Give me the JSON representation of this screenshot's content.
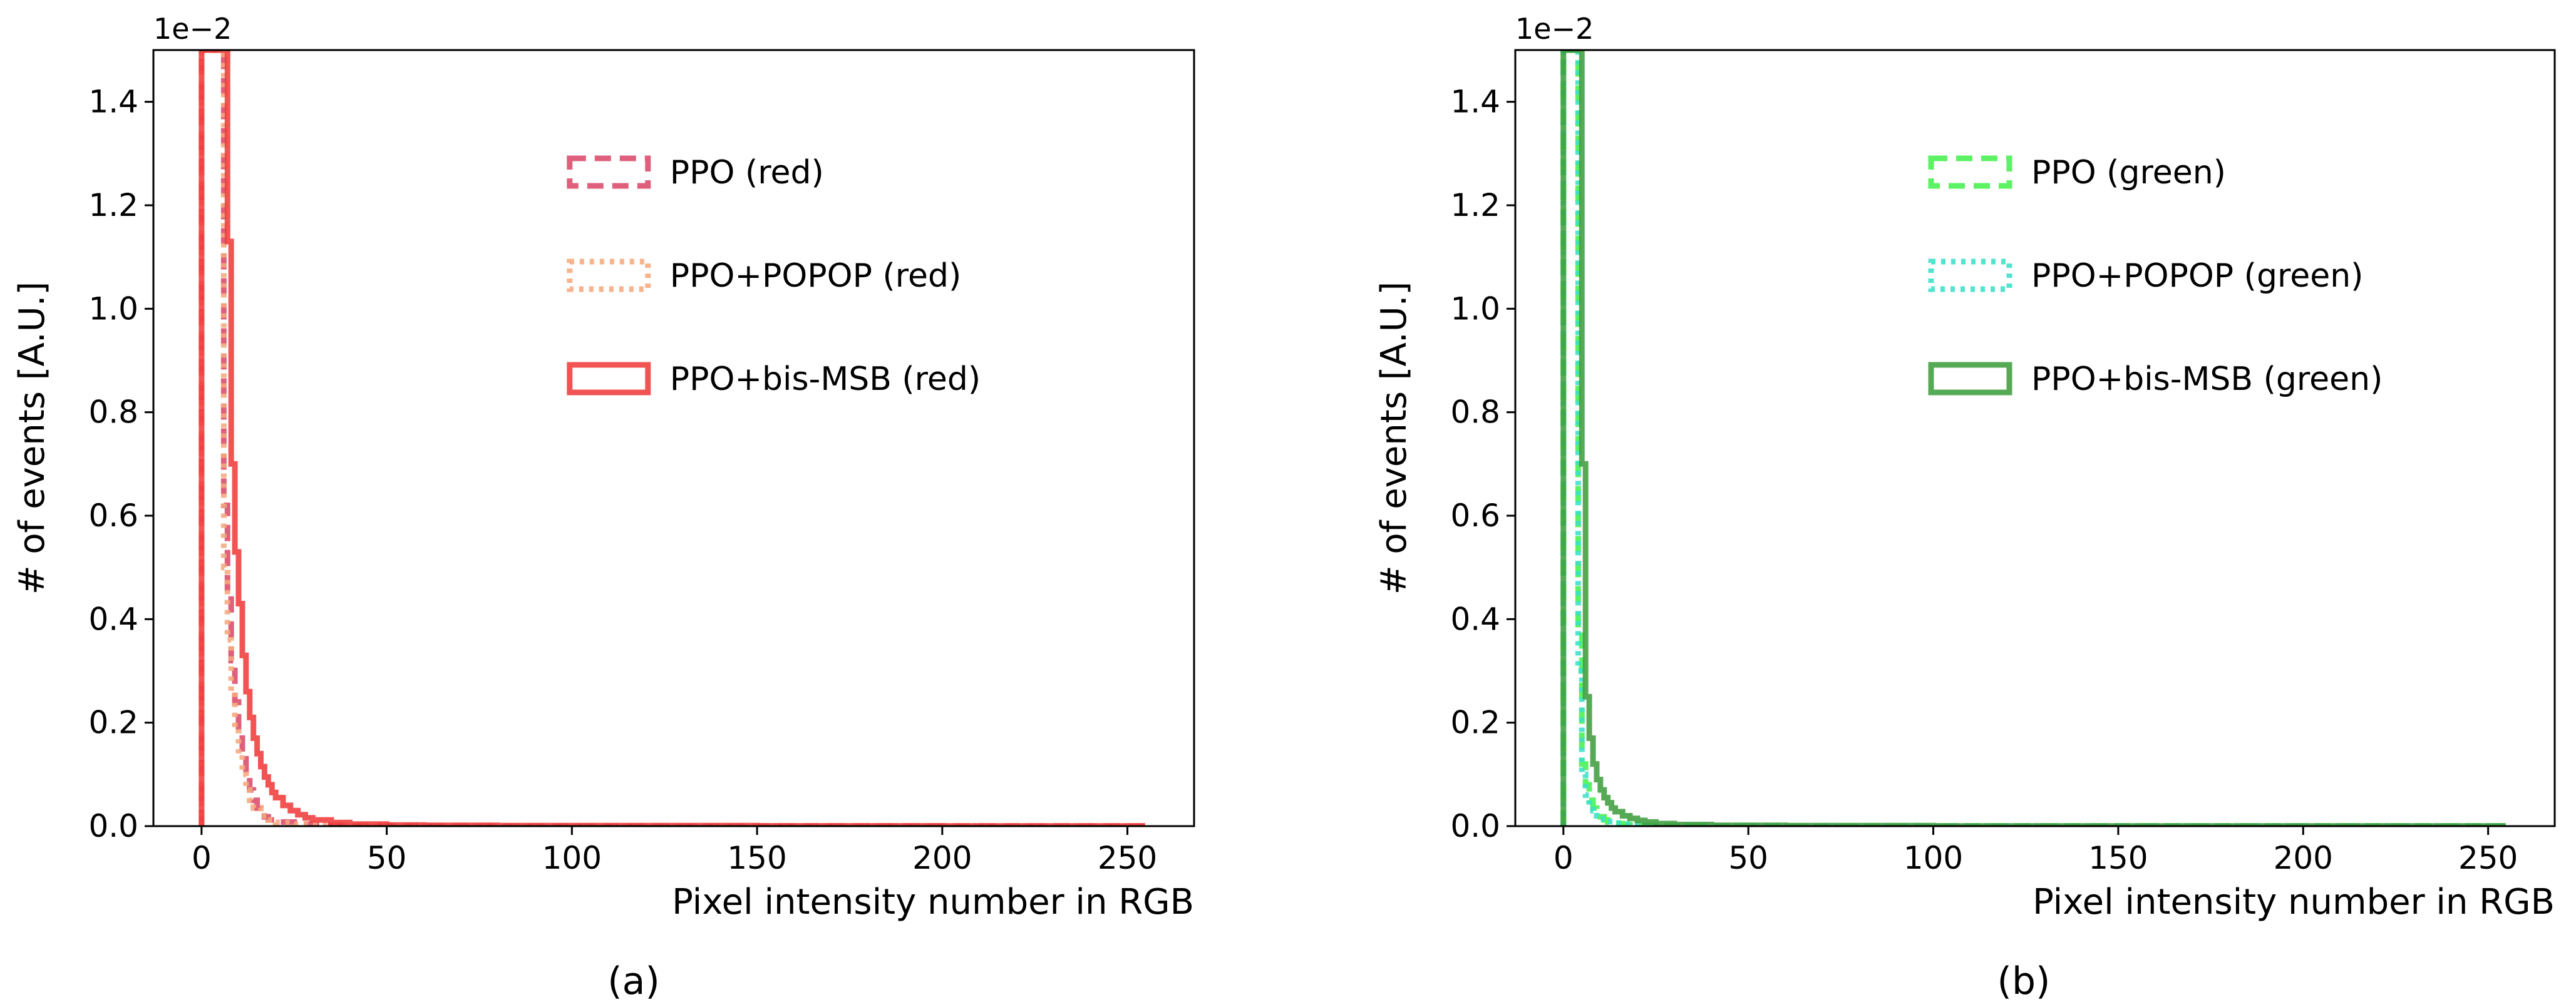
{
  "figure": {
    "panel_labels": [
      "(a)",
      "(b)"
    ]
  },
  "chart_data": [
    {
      "type": "histogram",
      "panel": "a",
      "xlabel": "Pixel intensity number in RGB",
      "ylabel": "# of events [A.U.]",
      "y_offset_label": "1e−2",
      "xlim": [
        -13,
        268
      ],
      "ylim": [
        0,
        1.5
      ],
      "xticks": [
        0,
        50,
        100,
        150,
        200,
        250
      ],
      "yticks": [
        0.0,
        0.2,
        0.4,
        0.6,
        0.8,
        1.0,
        1.2,
        1.4
      ],
      "legend_position": "upper-center",
      "series": [
        {
          "name": "PPO (red)",
          "color": "#d94a6a",
          "linestyle": "dashed",
          "x": [
            0,
            1,
            2,
            3,
            4,
            5,
            6,
            7,
            8,
            9,
            10,
            11,
            12,
            13,
            14,
            15,
            16,
            17,
            18,
            20,
            25,
            30,
            40,
            60,
            100,
            150,
            200,
            253
          ],
          "y": [
            1.5,
            1.5,
            1.5,
            1.5,
            1.5,
            1.5,
            0.62,
            0.45,
            0.32,
            0.24,
            0.18,
            0.13,
            0.095,
            0.07,
            0.05,
            0.035,
            0.025,
            0.018,
            0.012,
            0.008,
            0.004,
            0.002,
            0.001,
            0.0005,
            0.0003,
            0.0002,
            0.0002,
            0.0002
          ]
        },
        {
          "name": "PPO+POPOP (red)",
          "color": "#f5a97d",
          "linestyle": "dotted",
          "x": [
            0,
            1,
            2,
            3,
            4,
            5,
            6,
            7,
            8,
            9,
            10,
            11,
            12,
            13,
            14,
            16,
            18,
            20,
            25,
            30,
            40,
            60,
            100,
            150,
            200,
            253
          ],
          "y": [
            1.5,
            1.5,
            1.5,
            1.5,
            1.5,
            1.5,
            0.5,
            0.36,
            0.26,
            0.19,
            0.14,
            0.1,
            0.07,
            0.05,
            0.035,
            0.02,
            0.012,
            0.007,
            0.004,
            0.002,
            0.001,
            0.0005,
            0.0003,
            0.0002,
            0.0002,
            0.0002
          ]
        },
        {
          "name": "PPO+bis-MSB (red)",
          "color": "#f03c3c",
          "linestyle": "solid",
          "x": [
            0,
            1,
            2,
            3,
            4,
            5,
            6,
            7,
            8,
            9,
            10,
            11,
            12,
            13,
            14,
            15,
            16,
            17,
            18,
            19,
            20,
            22,
            24,
            26,
            28,
            30,
            35,
            40,
            50,
            60,
            80,
            100,
            150,
            200,
            253
          ],
          "y": [
            1.5,
            1.5,
            1.5,
            1.5,
            1.5,
            1.5,
            1.5,
            1.13,
            0.7,
            0.53,
            0.43,
            0.33,
            0.26,
            0.21,
            0.17,
            0.14,
            0.115,
            0.095,
            0.08,
            0.065,
            0.055,
            0.04,
            0.03,
            0.022,
            0.016,
            0.012,
            0.007,
            0.004,
            0.002,
            0.0015,
            0.001,
            0.0008,
            0.0005,
            0.0004,
            0.0003
          ]
        }
      ]
    },
    {
      "type": "histogram",
      "panel": "b",
      "xlabel": "Pixel intensity number in RGB",
      "ylabel": "# of events [A.U.]",
      "y_offset_label": "1e−2",
      "xlim": [
        -13,
        268
      ],
      "ylim": [
        0,
        1.5
      ],
      "xticks": [
        0,
        50,
        100,
        150,
        200,
        250
      ],
      "yticks": [
        0.0,
        0.2,
        0.4,
        0.6,
        0.8,
        1.0,
        1.2,
        1.4
      ],
      "legend_position": "upper-center",
      "series": [
        {
          "name": "PPO (green)",
          "color": "#47f04f",
          "linestyle": "dashed",
          "x": [
            0,
            1,
            2,
            3,
            4,
            5,
            6,
            7,
            8,
            9,
            10,
            11,
            12,
            14,
            16,
            18,
            20,
            25,
            30,
            40,
            60,
            100,
            150,
            200,
            253
          ],
          "y": [
            1.5,
            1.5,
            1.5,
            1.5,
            0.38,
            0.12,
            0.08,
            0.05,
            0.035,
            0.025,
            0.018,
            0.012,
            0.008,
            0.005,
            0.003,
            0.002,
            0.0015,
            0.001,
            0.0008,
            0.0005,
            0.0003,
            0.0002,
            0.0002,
            0.0002,
            0.0002
          ]
        },
        {
          "name": "PPO+POPOP (green)",
          "color": "#3ae0c8",
          "linestyle": "dotted",
          "x": [
            0,
            1,
            2,
            3,
            4,
            5,
            6,
            7,
            8,
            9,
            10,
            12,
            14,
            16,
            18,
            20,
            25,
            30,
            40,
            60,
            100,
            150,
            200,
            253
          ],
          "y": [
            1.5,
            1.5,
            1.5,
            1.5,
            0.3,
            0.1,
            0.06,
            0.04,
            0.03,
            0.02,
            0.014,
            0.009,
            0.006,
            0.004,
            0.003,
            0.002,
            0.0012,
            0.0008,
            0.0005,
            0.0003,
            0.0002,
            0.0002,
            0.0002,
            0.0002
          ]
        },
        {
          "name": "PPO+bis-MSB (green)",
          "color": "#3f9e3f",
          "linestyle": "solid",
          "x": [
            0,
            1,
            2,
            3,
            4,
            5,
            6,
            7,
            8,
            9,
            10,
            11,
            12,
            13,
            14,
            16,
            18,
            20,
            22,
            25,
            30,
            40,
            60,
            100,
            150,
            200,
            253
          ],
          "y": [
            1.5,
            1.5,
            1.5,
            1.5,
            1.5,
            0.7,
            0.25,
            0.17,
            0.12,
            0.09,
            0.07,
            0.055,
            0.045,
            0.035,
            0.028,
            0.02,
            0.015,
            0.011,
            0.008,
            0.005,
            0.003,
            0.0015,
            0.0008,
            0.0004,
            0.0003,
            0.0002,
            0.0002
          ]
        }
      ]
    }
  ]
}
